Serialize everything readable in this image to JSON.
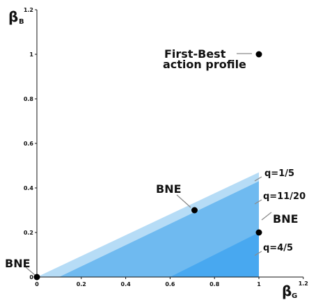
{
  "chart_data": {
    "type": "area",
    "axes": {
      "x": {
        "symbol": "β",
        "subscript": "G",
        "xlim": [
          0,
          1.2
        ]
      },
      "y": {
        "symbol": "β",
        "subscript": "B",
        "ylim": [
          0,
          1.2
        ]
      }
    },
    "ticks": {
      "x": [
        "0",
        "0.2",
        "0.4",
        "0.6",
        "0.8",
        "1",
        "1.2"
      ],
      "y": [
        "0",
        "0.2",
        "0.4",
        "0.6",
        "0.8",
        "1",
        "1.2"
      ]
    },
    "regions": [
      {
        "label": "q=1/5",
        "color": "#b6dcf6",
        "polygon": [
          [
            0,
            0
          ],
          [
            1,
            0
          ],
          [
            1,
            0.47
          ]
        ]
      },
      {
        "label": "q=11/20",
        "color": "#6fbaf0",
        "polygon": [
          [
            0.1,
            0
          ],
          [
            1,
            0
          ],
          [
            1,
            0.43
          ]
        ]
      },
      {
        "label": "q=4/5",
        "color": "#48a8f0",
        "polygon": [
          [
            0.6,
            0
          ],
          [
            1,
            0
          ],
          [
            1,
            0.2
          ]
        ]
      }
    ],
    "points": [
      {
        "name": "BNE",
        "x": 0,
        "y": 0
      },
      {
        "name": "BNE",
        "x": 0.71,
        "y": 0.3
      },
      {
        "name": "BNE",
        "x": 1,
        "y": 0.2
      },
      {
        "name": "First-Best action profile",
        "x": 1,
        "y": 1
      }
    ],
    "annotations": {
      "first_best": [
        "First-Best",
        "action profile"
      ],
      "bne_origin": "BNE",
      "bne_mid": "BNE",
      "bne_right": "BNE",
      "q1": "q=1/5",
      "q2": "q=11/20",
      "q3": "q=4/5"
    }
  }
}
